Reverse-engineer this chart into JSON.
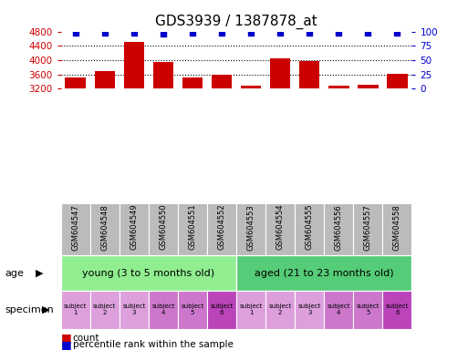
{
  "title": "GDS3939 / 1387878_at",
  "samples": [
    "GSM604547",
    "GSM604548",
    "GSM604549",
    "GSM604550",
    "GSM604551",
    "GSM604552",
    "GSM604553",
    "GSM604554",
    "GSM604555",
    "GSM604556",
    "GSM604557",
    "GSM604558"
  ],
  "counts": [
    3520,
    3700,
    4510,
    3940,
    3520,
    3580,
    3290,
    4060,
    3970,
    3290,
    3320,
    3620
  ],
  "percentile_ranks": [
    97,
    97,
    98,
    96,
    97,
    97,
    97,
    98,
    97,
    97,
    97,
    98
  ],
  "bar_color": "#cc0000",
  "dot_color": "#0000cc",
  "ylim_left": [
    3200,
    4800
  ],
  "ylim_right": [
    0,
    100
  ],
  "yticks_left": [
    3200,
    3600,
    4000,
    4400,
    4800
  ],
  "yticks_right": [
    0,
    25,
    50,
    75,
    100
  ],
  "age_groups": [
    {
      "label": "young (3 to 5 months old)",
      "start": 0,
      "end": 6,
      "color": "#90ee90"
    },
    {
      "label": "aged (21 to 23 months old)",
      "start": 6,
      "end": 12,
      "color": "#55cc77"
    }
  ],
  "specimen_labels": [
    "subject\n1",
    "subject\n2",
    "subject\n3",
    "subject\n4",
    "subject\n5",
    "subject\n6",
    "subject\n1",
    "subject\n2",
    "subject\n3",
    "subject\n4",
    "subject\n5",
    "subject\n6"
  ],
  "specimen_colors": [
    "#dda0dd",
    "#dda0dd",
    "#dda0dd",
    "#cc77cc",
    "#cc77cc",
    "#bb44bb",
    "#dda0dd",
    "#dda0dd",
    "#dda0dd",
    "#cc77cc",
    "#cc77cc",
    "#bb44bb"
  ],
  "age_label": "age",
  "specimen_label": "specimen",
  "legend_count_label": "count",
  "legend_pct_label": "percentile rank within the sample",
  "tick_color_left": "#cc0000",
  "tick_color_right": "#0000cc",
  "grid_color": "#000000",
  "xticklabel_bg": "#bbbbbb",
  "title_fontsize": 11,
  "bar_width": 0.7
}
